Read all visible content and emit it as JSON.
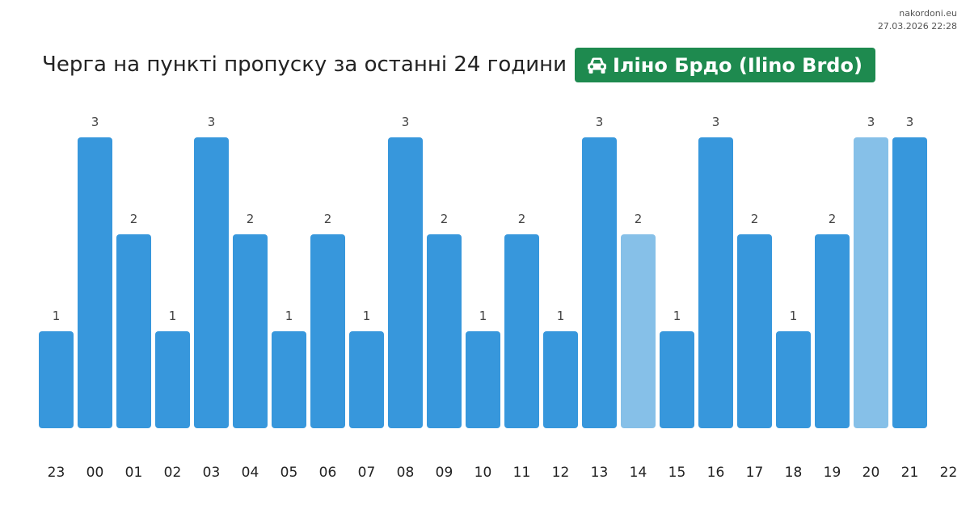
{
  "site": {
    "name": "nakordoni.eu",
    "timestamp": "27.03.2026 22:28"
  },
  "header": {
    "title": "Черга на пункті пропуску за останні 24 години",
    "crossing_name": "Іліно Брдо (Ilino Brdo)",
    "badge_icon": "car-icon",
    "badge_color": "#1e8a4f"
  },
  "colors": {
    "bar": "#3797dc",
    "bar_highlight": "#86c0e8",
    "value_label": "#444444",
    "hour_label": "#222222"
  },
  "chart_data": {
    "type": "bar",
    "categories": [
      "23",
      "00",
      "01",
      "02",
      "03",
      "04",
      "05",
      "06",
      "07",
      "08",
      "09",
      "10",
      "11",
      "12",
      "13",
      "14",
      "15",
      "16",
      "17",
      "18",
      "19",
      "20",
      "21"
    ],
    "x_tick_labels": [
      "23",
      "00",
      "01",
      "02",
      "03",
      "04",
      "05",
      "06",
      "07",
      "08",
      "09",
      "10",
      "11",
      "12",
      "13",
      "14",
      "15",
      "16",
      "17",
      "18",
      "19",
      "20",
      "21",
      "22"
    ],
    "values": [
      1,
      3,
      2,
      1,
      3,
      2,
      1,
      2,
      1,
      3,
      2,
      1,
      2,
      1,
      3,
      2,
      1,
      3,
      2,
      1,
      2,
      3,
      3
    ],
    "highlighted_categories": [
      "14",
      "20"
    ],
    "ylim": [
      0,
      3
    ],
    "grid": false,
    "legend": "none",
    "title": "Черга на пункті пропуску за останні 24 години",
    "xlabel": "",
    "ylabel": ""
  }
}
